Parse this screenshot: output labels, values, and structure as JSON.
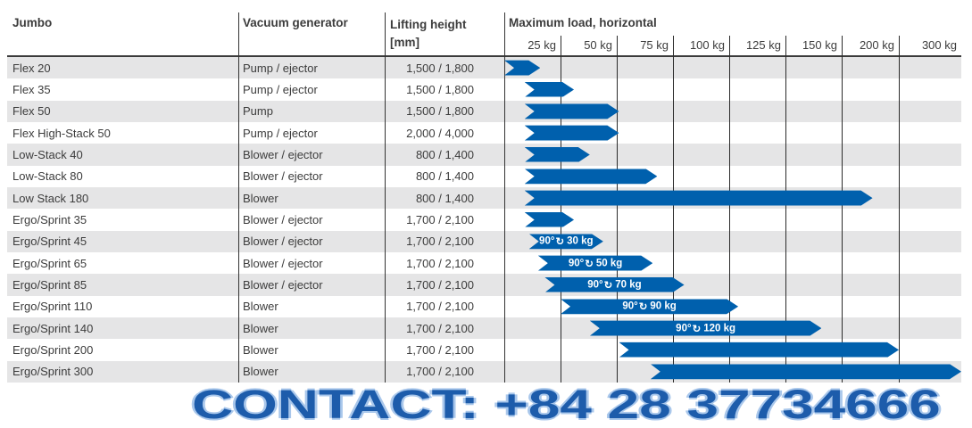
{
  "table": {
    "headers": {
      "model": "Jumbo",
      "generator": "Vacuum generator",
      "lifting": "Lifting height",
      "lifting_unit": "[mm]",
      "load": "Maximum load, horizontal"
    },
    "rows": [
      {
        "model": "Flex 20",
        "generator": "Pump / ejector",
        "lifting": "1,500 / 1,800",
        "bar_start_kg": 0,
        "bar_end_kg": 16,
        "label_rotation": null,
        "label_load": null
      },
      {
        "model": "Flex 35",
        "generator": "Pump / ejector",
        "lifting": "1,500 / 1,800",
        "bar_start_kg": 9,
        "bar_end_kg": 31,
        "label_rotation": null,
        "label_load": null
      },
      {
        "model": "Flex 50",
        "generator": "Pump",
        "lifting": "1,500 / 1,800",
        "bar_start_kg": 9,
        "bar_end_kg": 51,
        "label_rotation": null,
        "label_load": null
      },
      {
        "model": "Flex High-Stack 50",
        "generator": "Pump / ejector",
        "lifting": "2,000 / 4,000",
        "bar_start_kg": 9,
        "bar_end_kg": 51,
        "label_rotation": null,
        "label_load": null
      },
      {
        "model": "Low-Stack 40",
        "generator": "Blower / ejector",
        "lifting": "800 / 1,400",
        "bar_start_kg": 9,
        "bar_end_kg": 38,
        "label_rotation": null,
        "label_load": null
      },
      {
        "model": "Low-Stack 80",
        "generator": "Blower / ejector",
        "lifting": "800 / 1,400",
        "bar_start_kg": 9,
        "bar_end_kg": 68,
        "label_rotation": null,
        "label_load": null
      },
      {
        "model": "Low Stack 180",
        "generator": "Blower",
        "lifting": "800 / 1,400",
        "bar_start_kg": 9,
        "bar_end_kg": 177,
        "label_rotation": null,
        "label_load": null
      },
      {
        "model": "Ergo/Sprint 35",
        "generator": "Blower / ejector",
        "lifting": "1,700 / 2,100",
        "bar_start_kg": 9,
        "bar_end_kg": 31,
        "label_rotation": null,
        "label_load": null
      },
      {
        "model": "Ergo/Sprint 45",
        "generator": "Blower / ejector",
        "lifting": "1,700 / 2,100",
        "bar_start_kg": 11,
        "bar_end_kg": 44,
        "label_rotation": "90°",
        "label_load": "30 kg"
      },
      {
        "model": "Ergo/Sprint 65",
        "generator": "Blower / ejector",
        "lifting": "1,700 / 2,100",
        "bar_start_kg": 15,
        "bar_end_kg": 66,
        "label_rotation": "90°",
        "label_load": "50 kg"
      },
      {
        "model": "Ergo/Sprint 85",
        "generator": "Blower / ejector",
        "lifting": "1,700 / 2,100",
        "bar_start_kg": 18,
        "bar_end_kg": 80,
        "label_rotation": "90°",
        "label_load": "70 kg"
      },
      {
        "model": "Ergo/Sprint 110",
        "generator": "Blower",
        "lifting": "1,700 / 2,100",
        "bar_start_kg": 25,
        "bar_end_kg": 104,
        "label_rotation": "90°",
        "label_load": "90 kg"
      },
      {
        "model": "Ergo/Sprint 140",
        "generator": "Blower",
        "lifting": "1,700 / 2,100",
        "bar_start_kg": 38,
        "bar_end_kg": 141,
        "label_rotation": "90°",
        "label_load": "120 kg"
      },
      {
        "model": "Ergo/Sprint 200",
        "generator": "Blower",
        "lifting": "1,700 / 2,100",
        "bar_start_kg": 51,
        "bar_end_kg": 200,
        "label_rotation": null,
        "label_load": null
      },
      {
        "model": "Ergo/Sprint 300",
        "generator": "Blower",
        "lifting": "1,700 / 2,100",
        "bar_start_kg": 65,
        "bar_end_kg": 300,
        "label_rotation": null,
        "label_load": null
      }
    ]
  },
  "chart_data": {
    "type": "bar",
    "orientation": "horizontal",
    "title": "Maximum load, horizontal",
    "x_tick_labels": [
      "25 kg",
      "50 kg",
      "75 kg",
      "100 kg",
      "125 kg",
      "150 kg",
      "200 kg",
      "300 kg"
    ],
    "x_ticks_kg": [
      25,
      50,
      75,
      100,
      125,
      150,
      200,
      300
    ],
    "scale_note": "equal-width columns: 25 kg steps up to 150 kg, then 150-200 and 200-300",
    "grid": true,
    "categories": [
      "Flex 20",
      "Flex 35",
      "Flex 50",
      "Flex High-Stack 50",
      "Low-Stack 40",
      "Low-Stack 80",
      "Low Stack 180",
      "Ergo/Sprint 35",
      "Ergo/Sprint 45",
      "Ergo/Sprint 65",
      "Ergo/Sprint 85",
      "Ergo/Sprint 110",
      "Ergo/Sprint 140",
      "Ergo/Sprint 200",
      "Ergo/Sprint 300"
    ],
    "series": [
      {
        "name": "Maximum load, horizontal (kg, bar end)",
        "values": [
          16,
          31,
          51,
          51,
          38,
          68,
          177,
          31,
          44,
          66,
          80,
          104,
          141,
          200,
          300
        ]
      },
      {
        "name": "Bar start (kg)",
        "values": [
          0,
          9,
          9,
          9,
          9,
          9,
          9,
          9,
          11,
          15,
          18,
          25,
          38,
          51,
          65
        ]
      }
    ],
    "bar_annotations": [
      null,
      null,
      null,
      null,
      null,
      null,
      null,
      null,
      "90° 30 kg",
      "90° 50 kg",
      "90° 70 kg",
      "90° 90 kg",
      "90° 120 kg",
      null,
      null
    ]
  },
  "footer": {
    "contact": "CONTACT: +84 28 37734666"
  },
  "icons": {
    "rotation": "rotate-90-icon"
  },
  "colors": {
    "bar": "#0060ad",
    "bar_label": "#ffffff",
    "stripe": "#e5e5e6",
    "grid": "#2b2b2b",
    "text": "#3c3c3c",
    "contact": "#1d5cab",
    "contact_glow": "#a9c7eb"
  }
}
